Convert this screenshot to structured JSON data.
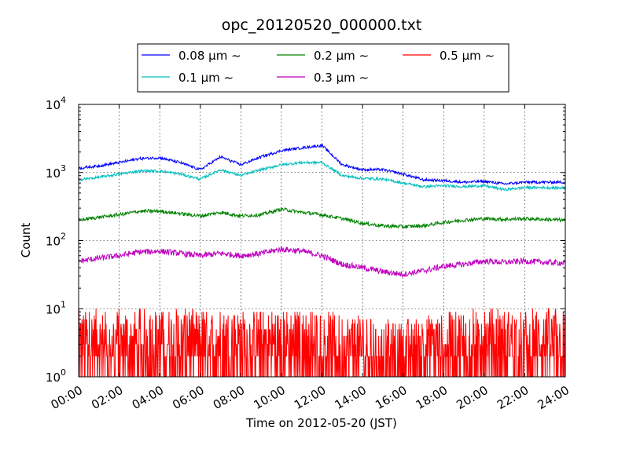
{
  "chart_data": {
    "type": "line",
    "title": "opc_20120520_000000.txt",
    "xlabel": "Time on 2012-05-20 (JST)",
    "ylabel": "Count",
    "yscale": "log",
    "ylim": [
      1,
      10000
    ],
    "xlim_hours": [
      0,
      24
    ],
    "grid": true,
    "legend_position": "top",
    "x_ticks": [
      "00:00",
      "02:00",
      "04:00",
      "06:00",
      "08:00",
      "10:00",
      "12:00",
      "14:00",
      "16:00",
      "18:00",
      "20:00",
      "22:00",
      "24:00"
    ],
    "y_ticks": [
      {
        "base": "10",
        "exp": "0",
        "value": 1
      },
      {
        "base": "10",
        "exp": "1",
        "value": 10
      },
      {
        "base": "10",
        "exp": "2",
        "value": 100
      },
      {
        "base": "10",
        "exp": "3",
        "value": 1000
      },
      {
        "base": "10",
        "exp": "4",
        "value": 10000
      }
    ],
    "x_hours": [
      0,
      1,
      2,
      3,
      4,
      5,
      6,
      7,
      8,
      9,
      10,
      11,
      12,
      13,
      14,
      15,
      16,
      17,
      18,
      19,
      20,
      21,
      22,
      23,
      24
    ],
    "series": [
      {
        "name": "0.08 µm ∼",
        "color": "#0000ff",
        "noise": 0.045,
        "values": [
          1150,
          1250,
          1400,
          1600,
          1650,
          1400,
          1100,
          1700,
          1300,
          1700,
          2100,
          2300,
          2500,
          1300,
          1100,
          1100,
          950,
          780,
          760,
          720,
          740,
          680,
          720,
          720,
          720
        ]
      },
      {
        "name": "0.1 µm ∼",
        "color": "#00bfbf",
        "noise": 0.045,
        "values": [
          780,
          850,
          950,
          1050,
          1050,
          950,
          800,
          1100,
          900,
          1100,
          1300,
          1400,
          1400,
          900,
          820,
          800,
          700,
          620,
          640,
          620,
          640,
          560,
          600,
          600,
          590
        ]
      },
      {
        "name": "0.2 µm ∼",
        "color": "#008000",
        "noise": 0.06,
        "values": [
          200,
          220,
          240,
          270,
          270,
          250,
          230,
          260,
          230,
          240,
          290,
          260,
          240,
          210,
          180,
          165,
          160,
          165,
          185,
          200,
          210,
          205,
          210,
          205,
          200
        ]
      },
      {
        "name": "0.3 µm ∼",
        "color": "#bf00bf",
        "noise": 0.1,
        "values": [
          50,
          55,
          60,
          68,
          70,
          65,
          60,
          65,
          60,
          65,
          75,
          70,
          60,
          45,
          40,
          35,
          32,
          36,
          42,
          45,
          50,
          48,
          50,
          48,
          47
        ]
      },
      {
        "name": "0.5 µm ∼",
        "color": "#ff0000",
        "noise": 0.5,
        "values": [
          3,
          3,
          3,
          3,
          3,
          3,
          3,
          3,
          3,
          3,
          3,
          3,
          3,
          2.5,
          2.5,
          2,
          2,
          2.5,
          2.5,
          3,
          3,
          3,
          3,
          3,
          3
        ]
      }
    ]
  }
}
